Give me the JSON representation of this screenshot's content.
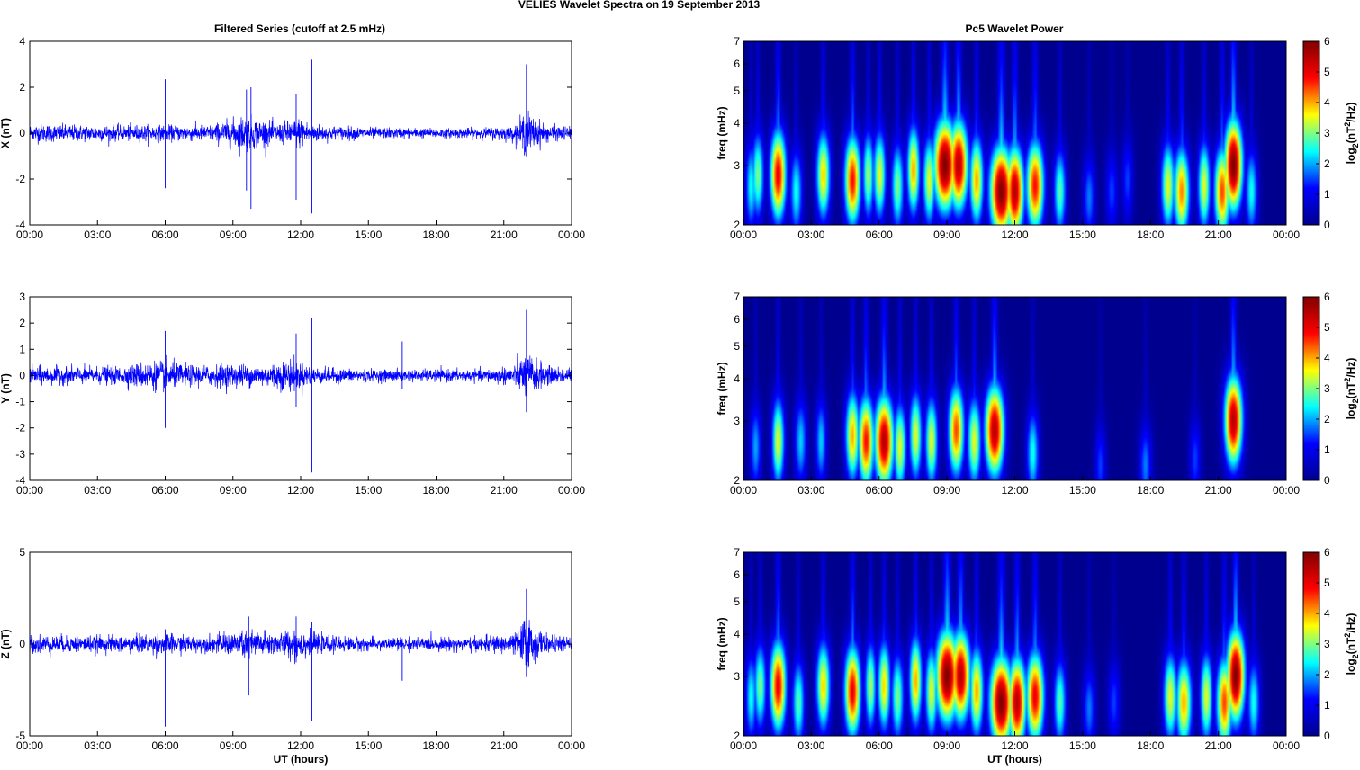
{
  "figure": {
    "title": "VELIES Wavelet Spectra on 19 September 2013",
    "left_column_title": "Filtered Series (cutoff at 2.5 mHz)",
    "right_column_title": "Pc5 Wavelet Power",
    "x_label": "UT (hours)",
    "freq_label": "freq (mHz)",
    "colorbar_label": "log2(nT^2/Hz)",
    "colorbar_label_parts": {
      "prefix": "log",
      "sub": "2",
      "mid": "(nT",
      "sup": "2",
      "suffix": "/Hz)"
    }
  },
  "colors": {
    "series_line": "#0000ff",
    "jet_colormap": [
      "#00008f",
      "#0000ff",
      "#00ffff",
      "#ffff00",
      "#ff0000",
      "#800000"
    ]
  },
  "chart_data": [
    {
      "type": "line",
      "component": "X",
      "ylabel": "X (nT)",
      "ylim": [
        -4,
        4
      ],
      "yticks": [
        -4,
        -2,
        0,
        2,
        4
      ],
      "xlim": [
        0,
        24
      ],
      "xticks": [
        0,
        3,
        6,
        9,
        12,
        15,
        18,
        21,
        24
      ],
      "xtick_labels": [
        "00:00",
        "03:00",
        "06:00",
        "09:00",
        "12:00",
        "15:00",
        "18:00",
        "21:00",
        "00:00"
      ],
      "noise_envelope": {
        "x": [
          0,
          2,
          4,
          5,
          6,
          7,
          8,
          9,
          9.5,
          10,
          11,
          11.5,
          12,
          12.5,
          13,
          15,
          18,
          20,
          21.5,
          22,
          22.3,
          23,
          24
        ],
        "amp": [
          0.35,
          0.32,
          0.3,
          0.32,
          0.3,
          0.3,
          0.32,
          0.55,
          0.7,
          0.6,
          0.35,
          0.5,
          0.6,
          0.4,
          0.3,
          0.22,
          0.18,
          0.2,
          0.3,
          0.9,
          0.6,
          0.3,
          0.25
        ]
      },
      "spikes": [
        {
          "x": 6.0,
          "min": -2.4,
          "max": 2.35
        },
        {
          "x": 9.6,
          "min": -2.5,
          "max": 1.9
        },
        {
          "x": 9.8,
          "min": -3.3,
          "max": 2.0
        },
        {
          "x": 11.8,
          "min": -2.9,
          "max": 1.7
        },
        {
          "x": 12.5,
          "min": -3.5,
          "max": 3.2
        },
        {
          "x": 22.0,
          "min": -1.0,
          "max": 3.0
        }
      ]
    },
    {
      "type": "line",
      "component": "Y",
      "ylabel": "Y (nT)",
      "ylim": [
        -4,
        3
      ],
      "yticks": [
        -4,
        -3,
        -2,
        -1,
        0,
        1,
        2,
        3
      ],
      "xlim": [
        0,
        24
      ],
      "xticks": [
        0,
        3,
        6,
        9,
        12,
        15,
        18,
        21,
        24
      ],
      "xtick_labels": [
        "00:00",
        "03:00",
        "06:00",
        "09:00",
        "12:00",
        "15:00",
        "18:00",
        "21:00",
        "00:00"
      ],
      "noise_envelope": {
        "x": [
          0,
          2,
          4,
          5,
          6,
          7,
          8,
          9,
          10,
          11,
          11.5,
          12,
          12.5,
          13,
          15,
          16.5,
          18,
          20,
          21.5,
          22,
          22.5,
          23,
          24
        ],
        "amp": [
          0.3,
          0.28,
          0.3,
          0.45,
          0.5,
          0.35,
          0.35,
          0.4,
          0.35,
          0.45,
          0.55,
          0.45,
          0.3,
          0.25,
          0.2,
          0.2,
          0.2,
          0.2,
          0.35,
          0.8,
          0.5,
          0.3,
          0.25
        ]
      },
      "spikes": [
        {
          "x": 6.0,
          "min": -2.0,
          "max": 1.7
        },
        {
          "x": 11.8,
          "min": -1.2,
          "max": 1.6
        },
        {
          "x": 12.5,
          "min": -3.7,
          "max": 2.2
        },
        {
          "x": 16.5,
          "min": -0.5,
          "max": 1.3
        },
        {
          "x": 22.0,
          "min": -1.4,
          "max": 2.5
        }
      ]
    },
    {
      "type": "line",
      "component": "Z",
      "ylabel": "Z (nT)",
      "ylim": [
        -5,
        5
      ],
      "yticks": [
        -5,
        0,
        5
      ],
      "xlim": [
        0,
        24
      ],
      "xticks": [
        0,
        3,
        6,
        9,
        12,
        15,
        18,
        21,
        24
      ],
      "xtick_labels": [
        "00:00",
        "03:00",
        "06:00",
        "09:00",
        "12:00",
        "15:00",
        "18:00",
        "21:00",
        "00:00"
      ],
      "xlabel": "UT (hours)",
      "noise_envelope": {
        "x": [
          0,
          2,
          4,
          5,
          6,
          7,
          8,
          9,
          9.5,
          10,
          11,
          11.5,
          12,
          12.5,
          13,
          15,
          18,
          20,
          21.5,
          22,
          22.4,
          23,
          24
        ],
        "amp": [
          0.45,
          0.4,
          0.4,
          0.45,
          0.5,
          0.4,
          0.4,
          0.6,
          0.8,
          0.7,
          0.5,
          0.7,
          0.75,
          0.5,
          0.4,
          0.3,
          0.3,
          0.35,
          0.5,
          1.4,
          0.8,
          0.4,
          0.3
        ]
      },
      "spikes": [
        {
          "x": 6.0,
          "min": -4.5,
          "max": 0.8
        },
        {
          "x": 9.7,
          "min": -2.8,
          "max": 1.5
        },
        {
          "x": 11.8,
          "min": -1.0,
          "max": 1.5
        },
        {
          "x": 12.5,
          "min": -4.2,
          "max": 1.2
        },
        {
          "x": 16.5,
          "min": -2.0,
          "max": 0.3
        },
        {
          "x": 22.0,
          "min": -1.8,
          "max": 3.0
        }
      ]
    },
    {
      "type": "heatmap",
      "component": "X",
      "ylabel": "freq (mHz)",
      "y_scale": "log",
      "ylim": [
        2,
        7
      ],
      "yticks": [
        2,
        3,
        4,
        5,
        6,
        7
      ],
      "xlim": [
        0,
        24
      ],
      "xticks": [
        0,
        3,
        6,
        9,
        12,
        15,
        18,
        21,
        24
      ],
      "xtick_labels": [
        "00:00",
        "03:00",
        "06:00",
        "09:00",
        "12:00",
        "15:00",
        "18:00",
        "21:00",
        "00:00"
      ],
      "colorbar": {
        "range": [
          0,
          6
        ],
        "ticks": [
          0,
          1,
          2,
          3,
          4,
          5,
          6
        ]
      },
      "blobs": [
        {
          "t": 0.3,
          "f": 2.6,
          "power": 2.5,
          "width": 0.18
        },
        {
          "t": 0.6,
          "f": 2.8,
          "power": 3.0,
          "width": 0.2
        },
        {
          "t": 1.5,
          "f": 2.8,
          "power": 5.0,
          "width": 0.25
        },
        {
          "t": 2.3,
          "f": 2.5,
          "power": 2.5,
          "width": 0.2
        },
        {
          "t": 3.5,
          "f": 2.8,
          "power": 3.8,
          "width": 0.22
        },
        {
          "t": 4.8,
          "f": 2.7,
          "power": 4.8,
          "width": 0.25
        },
        {
          "t": 5.5,
          "f": 2.8,
          "power": 3.2,
          "width": 0.18
        },
        {
          "t": 6.0,
          "f": 2.8,
          "power": 3.5,
          "width": 0.2
        },
        {
          "t": 6.8,
          "f": 2.6,
          "power": 3.0,
          "width": 0.2
        },
        {
          "t": 7.5,
          "f": 2.9,
          "power": 4.0,
          "width": 0.2
        },
        {
          "t": 8.2,
          "f": 2.7,
          "power": 3.5,
          "width": 0.2
        },
        {
          "t": 8.9,
          "f": 3.0,
          "power": 6.0,
          "width": 0.35
        },
        {
          "t": 9.5,
          "f": 3.0,
          "power": 5.5,
          "width": 0.3
        },
        {
          "t": 10.3,
          "f": 2.7,
          "power": 4.0,
          "width": 0.22
        },
        {
          "t": 11.4,
          "f": 2.5,
          "power": 6.0,
          "width": 0.35
        },
        {
          "t": 12.0,
          "f": 2.5,
          "power": 5.5,
          "width": 0.28
        },
        {
          "t": 12.9,
          "f": 2.6,
          "power": 4.8,
          "width": 0.28
        },
        {
          "t": 14.0,
          "f": 2.5,
          "power": 2.8,
          "width": 0.2
        },
        {
          "t": 15.3,
          "f": 2.4,
          "power": 1.8,
          "width": 0.2
        },
        {
          "t": 16.3,
          "f": 2.5,
          "power": 1.5,
          "width": 0.2
        },
        {
          "t": 17.0,
          "f": 2.7,
          "power": 1.5,
          "width": 0.18
        },
        {
          "t": 18.8,
          "f": 2.6,
          "power": 3.5,
          "width": 0.22
        },
        {
          "t": 19.4,
          "f": 2.5,
          "power": 4.2,
          "width": 0.25
        },
        {
          "t": 20.4,
          "f": 2.6,
          "power": 3.5,
          "width": 0.2
        },
        {
          "t": 21.2,
          "f": 2.5,
          "power": 4.5,
          "width": 0.25
        },
        {
          "t": 21.7,
          "f": 3.0,
          "power": 6.0,
          "width": 0.28
        },
        {
          "t": 22.5,
          "f": 2.5,
          "power": 2.5,
          "width": 0.2
        }
      ]
    },
    {
      "type": "heatmap",
      "component": "Y",
      "ylabel": "freq (mHz)",
      "y_scale": "log",
      "ylim": [
        2,
        7
      ],
      "yticks": [
        2,
        3,
        4,
        5,
        6,
        7
      ],
      "xlim": [
        0,
        24
      ],
      "xticks": [
        0,
        3,
        6,
        9,
        12,
        15,
        18,
        21,
        24
      ],
      "xtick_labels": [
        "00:00",
        "03:00",
        "06:00",
        "09:00",
        "12:00",
        "15:00",
        "18:00",
        "21:00",
        "00:00"
      ],
      "colorbar": {
        "range": [
          0,
          6
        ],
        "ticks": [
          0,
          1,
          2,
          3,
          4,
          5,
          6
        ]
      },
      "blobs": [
        {
          "t": 0.5,
          "f": 2.5,
          "power": 2.0,
          "width": 0.18
        },
        {
          "t": 1.5,
          "f": 2.6,
          "power": 3.5,
          "width": 0.2
        },
        {
          "t": 2.5,
          "f": 2.6,
          "power": 2.2,
          "width": 0.2
        },
        {
          "t": 3.4,
          "f": 2.6,
          "power": 2.2,
          "width": 0.18
        },
        {
          "t": 4.8,
          "f": 2.7,
          "power": 4.0,
          "width": 0.22
        },
        {
          "t": 5.4,
          "f": 2.6,
          "power": 4.8,
          "width": 0.25
        },
        {
          "t": 6.2,
          "f": 2.6,
          "power": 5.5,
          "width": 0.3
        },
        {
          "t": 6.9,
          "f": 2.5,
          "power": 3.5,
          "width": 0.2
        },
        {
          "t": 7.6,
          "f": 2.7,
          "power": 3.5,
          "width": 0.2
        },
        {
          "t": 8.3,
          "f": 2.6,
          "power": 3.5,
          "width": 0.2
        },
        {
          "t": 9.4,
          "f": 2.8,
          "power": 4.5,
          "width": 0.25
        },
        {
          "t": 10.2,
          "f": 2.6,
          "power": 3.5,
          "width": 0.22
        },
        {
          "t": 11.1,
          "f": 2.8,
          "power": 5.5,
          "width": 0.3
        },
        {
          "t": 12.8,
          "f": 2.4,
          "power": 2.5,
          "width": 0.2
        },
        {
          "t": 15.8,
          "f": 2.2,
          "power": 1.5,
          "width": 0.18
        },
        {
          "t": 17.8,
          "f": 2.2,
          "power": 1.8,
          "width": 0.2
        },
        {
          "t": 20.0,
          "f": 2.3,
          "power": 1.5,
          "width": 0.18
        },
        {
          "t": 21.7,
          "f": 3.0,
          "power": 5.5,
          "width": 0.28
        }
      ]
    },
    {
      "type": "heatmap",
      "component": "Z",
      "ylabel": "freq (mHz)",
      "xlabel": "UT (hours)",
      "y_scale": "log",
      "ylim": [
        2,
        7
      ],
      "yticks": [
        2,
        3,
        4,
        5,
        6,
        7
      ],
      "xlim": [
        0,
        24
      ],
      "xticks": [
        0,
        3,
        6,
        9,
        12,
        15,
        18,
        21,
        24
      ],
      "xtick_labels": [
        "00:00",
        "03:00",
        "06:00",
        "09:00",
        "12:00",
        "15:00",
        "18:00",
        "21:00",
        "00:00"
      ],
      "colorbar": {
        "range": [
          0,
          6
        ],
        "ticks": [
          0,
          1,
          2,
          3,
          4,
          5,
          6
        ]
      },
      "blobs": [
        {
          "t": 0.3,
          "f": 2.6,
          "power": 2.5,
          "width": 0.18
        },
        {
          "t": 0.7,
          "f": 2.8,
          "power": 3.0,
          "width": 0.2
        },
        {
          "t": 1.5,
          "f": 2.8,
          "power": 5.0,
          "width": 0.25
        },
        {
          "t": 2.4,
          "f": 2.5,
          "power": 2.8,
          "width": 0.2
        },
        {
          "t": 3.5,
          "f": 2.8,
          "power": 3.8,
          "width": 0.22
        },
        {
          "t": 4.8,
          "f": 2.7,
          "power": 5.0,
          "width": 0.25
        },
        {
          "t": 5.6,
          "f": 2.8,
          "power": 3.2,
          "width": 0.18
        },
        {
          "t": 6.2,
          "f": 2.8,
          "power": 3.8,
          "width": 0.2
        },
        {
          "t": 6.8,
          "f": 2.6,
          "power": 3.0,
          "width": 0.2
        },
        {
          "t": 7.6,
          "f": 2.9,
          "power": 4.0,
          "width": 0.2
        },
        {
          "t": 8.3,
          "f": 2.7,
          "power": 3.5,
          "width": 0.2
        },
        {
          "t": 9.0,
          "f": 3.0,
          "power": 6.0,
          "width": 0.35
        },
        {
          "t": 9.6,
          "f": 3.0,
          "power": 5.5,
          "width": 0.3
        },
        {
          "t": 10.3,
          "f": 2.7,
          "power": 4.0,
          "width": 0.22
        },
        {
          "t": 11.4,
          "f": 2.5,
          "power": 6.0,
          "width": 0.35
        },
        {
          "t": 12.1,
          "f": 2.5,
          "power": 5.5,
          "width": 0.28
        },
        {
          "t": 12.9,
          "f": 2.6,
          "power": 5.0,
          "width": 0.28
        },
        {
          "t": 14.0,
          "f": 2.5,
          "power": 2.8,
          "width": 0.2
        },
        {
          "t": 15.3,
          "f": 2.4,
          "power": 1.8,
          "width": 0.2
        },
        {
          "t": 16.4,
          "f": 2.5,
          "power": 1.5,
          "width": 0.2
        },
        {
          "t": 18.9,
          "f": 2.6,
          "power": 3.5,
          "width": 0.22
        },
        {
          "t": 19.5,
          "f": 2.5,
          "power": 4.0,
          "width": 0.25
        },
        {
          "t": 20.5,
          "f": 2.6,
          "power": 3.5,
          "width": 0.2
        },
        {
          "t": 21.3,
          "f": 2.5,
          "power": 4.5,
          "width": 0.25
        },
        {
          "t": 21.8,
          "f": 3.0,
          "power": 6.0,
          "width": 0.28
        },
        {
          "t": 22.6,
          "f": 2.5,
          "power": 2.5,
          "width": 0.2
        }
      ]
    }
  ]
}
